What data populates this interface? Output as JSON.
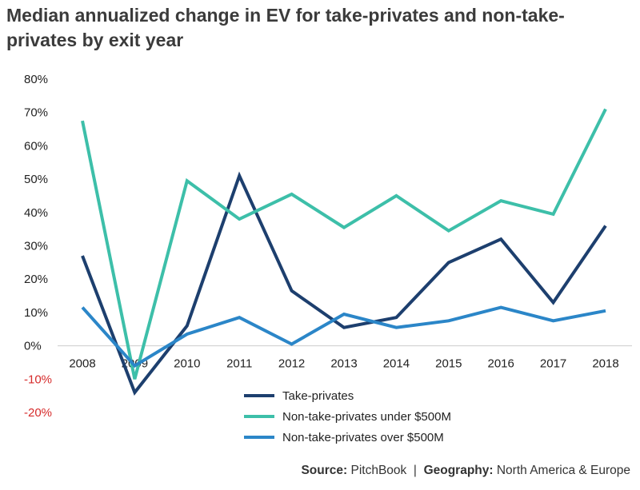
{
  "chart_data": {
    "type": "line",
    "title": "Median annualized change in EV for take-privates and non-take-privates by exit year",
    "categories": [
      "2008",
      "2009",
      "2010",
      "2011",
      "2012",
      "2013",
      "2014",
      "2015",
      "2016",
      "2017",
      "2018"
    ],
    "ylim": [
      -20,
      80
    ],
    "yticks": [
      -20,
      -10,
      0,
      10,
      20,
      30,
      40,
      50,
      60,
      70,
      80
    ],
    "ytick_labels": [
      "-20%",
      "-10%",
      "0%",
      "10%",
      "20%",
      "30%",
      "40%",
      "50%",
      "60%",
      "70%",
      "80%"
    ],
    "xlabel": "",
    "ylabel": "",
    "grid": false,
    "legend_position": "bottom-center",
    "series": [
      {
        "name": "Take-privates",
        "color": "#1d3f6e",
        "values": [
          27,
          -14,
          6,
          51,
          16.5,
          5.5,
          8.5,
          25,
          32,
          13,
          36
        ]
      },
      {
        "name": "Non-take-privates under $500M",
        "color": "#3dbfa9",
        "values": [
          67.5,
          -10,
          49.5,
          38,
          45.5,
          35.5,
          45,
          34.5,
          43.5,
          39.5,
          71
        ]
      },
      {
        "name": "Non-take-privates over $500M",
        "color": "#2b86c8",
        "values": [
          11.5,
          -6,
          3.5,
          8.5,
          0.5,
          9.5,
          5.5,
          7.5,
          11.5,
          7.5,
          10.5
        ]
      }
    ]
  },
  "source": {
    "source_label": "Source:",
    "source_value": "PitchBook",
    "separator": "|",
    "geography_label": "Geography:",
    "geography_value": "North America & Europe"
  },
  "colors": {
    "negative_tick": "#d62b2b",
    "axis": "#cccccc"
  }
}
